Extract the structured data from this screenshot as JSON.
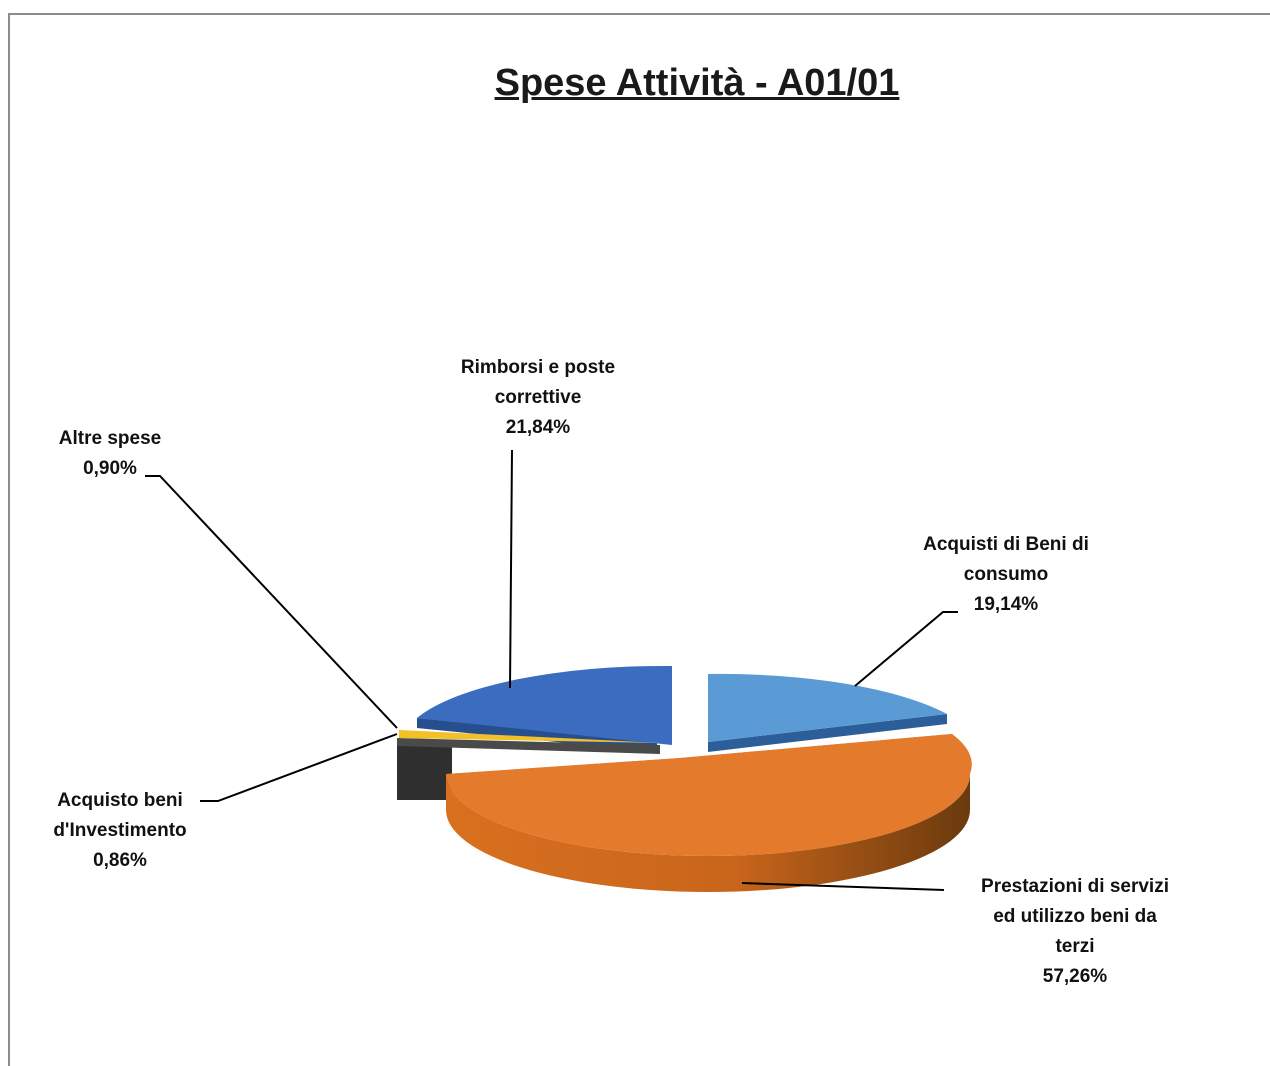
{
  "chart_data": {
    "type": "pie",
    "title": "Spese Attività - A01/01",
    "slices": [
      {
        "name": "Acquisti di Beni di consumo",
        "value": 19.14,
        "label": "19,14%",
        "color": "#5b9bd5"
      },
      {
        "name": "Prestazioni di servizi ed utilizzo beni da terzi",
        "value": 57.26,
        "label": "57,26%",
        "color": "#e07428"
      },
      {
        "name": "Acquisto beni d'Investimento",
        "value": 0.86,
        "label": "0,86%",
        "color": "#4a4a4a"
      },
      {
        "name": "Altre spese",
        "value": 0.9,
        "label": "0,90%",
        "color": "#f2c027"
      },
      {
        "name": "Rimborsi e poste correttive",
        "value": 21.84,
        "label": "21,84%",
        "color": "#3a6fc4"
      }
    ]
  }
}
